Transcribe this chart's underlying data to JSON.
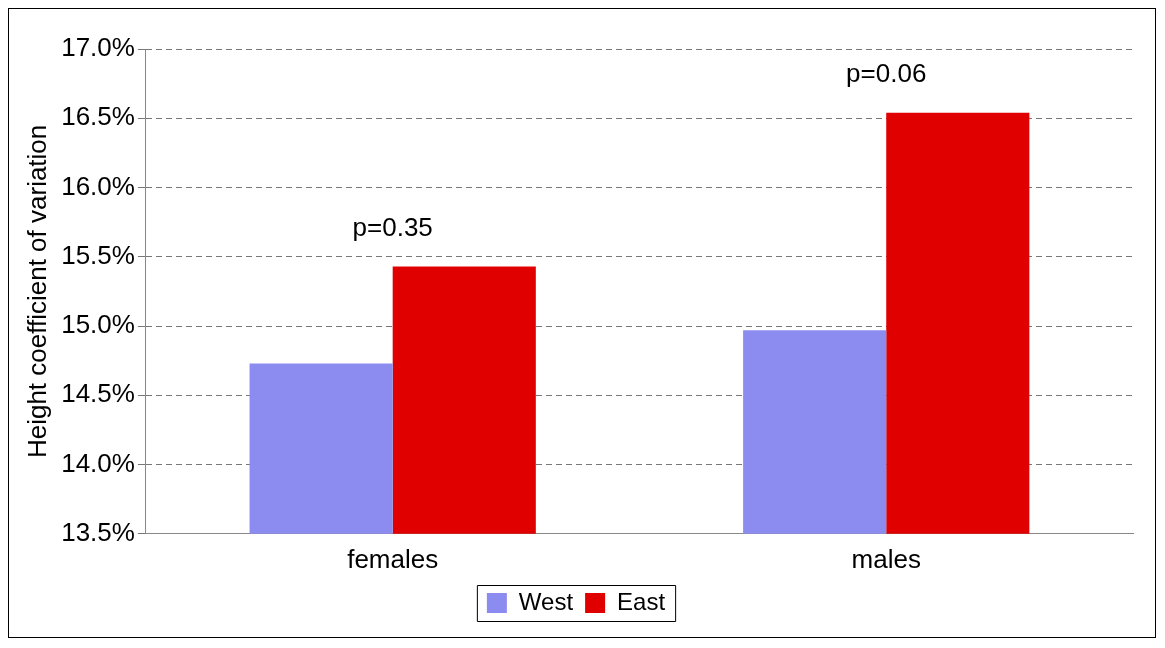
{
  "chart_data": {
    "type": "bar",
    "ylabel": "Height coefficient of variation",
    "categories": [
      "females",
      "males"
    ],
    "series": [
      {
        "name": "West",
        "color": "#8c8cf0",
        "values": [
          14.73,
          14.97
        ]
      },
      {
        "name": "East",
        "color": "#e00000",
        "values": [
          15.43,
          16.54
        ]
      }
    ],
    "ylim": [
      13.5,
      17
    ],
    "yticks": [
      {
        "value": 13.5,
        "label": "13.5%"
      },
      {
        "value": 14,
        "label": "14.0%"
      },
      {
        "value": 14.5,
        "label": "14.5%"
      },
      {
        "value": 15,
        "label": "15.0%"
      },
      {
        "value": 15.5,
        "label": "15.5%"
      },
      {
        "value": 16,
        "label": "16.0%"
      },
      {
        "value": 16.5,
        "label": "16.5%"
      },
      {
        "value": 17,
        "label": "17.0%"
      }
    ],
    "grid": "y",
    "line_style": "dashed",
    "legend": "bottom",
    "annotations": [
      "p=0.35",
      "p=0.06"
    ]
  }
}
